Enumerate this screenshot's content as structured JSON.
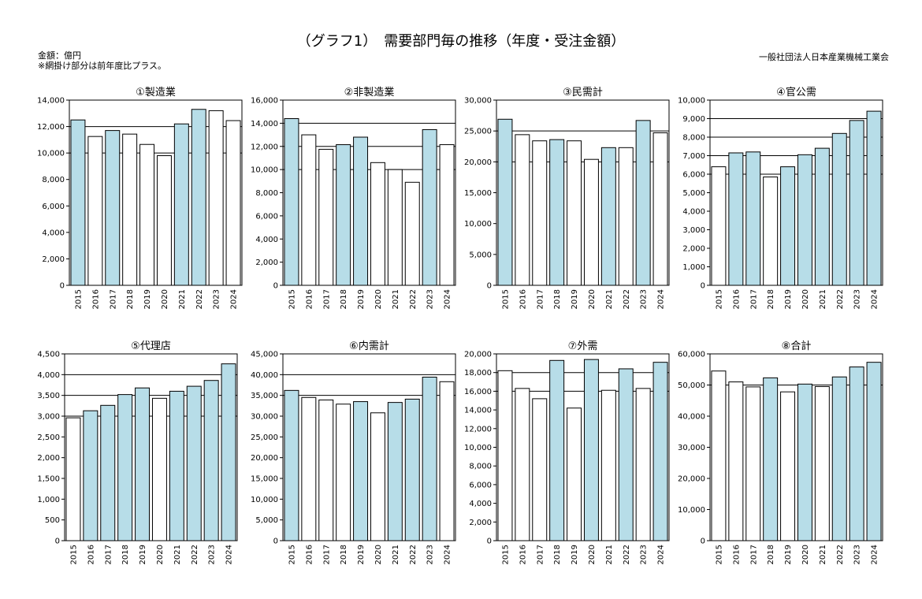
{
  "header": {
    "title": "（グラフ1）　需要部門毎の推移（年度・受注金額）",
    "unit": "金額：億円",
    "note": "※網掛け部分は前年度比プラス。",
    "publisher": "一般社団法人日本産業機械工業会"
  },
  "colors": {
    "plus": "#b7dde8",
    "minus": "#ffffff",
    "stroke": "#000000"
  },
  "chart_data": [
    {
      "type": "bar",
      "title": "①製造業",
      "categories": [
        "2015",
        "2016",
        "2017",
        "2018",
        "2019",
        "2020",
        "2021",
        "2022",
        "2023",
        "2024"
      ],
      "values": [
        12500,
        11250,
        11700,
        11430,
        10650,
        9800,
        12200,
        13300,
        13200,
        12450
      ],
      "shaded": [
        true,
        false,
        true,
        false,
        false,
        false,
        true,
        true,
        false,
        false
      ],
      "ylim": [
        0,
        14000
      ],
      "yticks": [
        0,
        2000,
        4000,
        6000,
        8000,
        10000,
        12000,
        14000
      ],
      "hlines": [
        10000,
        12000
      ],
      "grid": false
    },
    {
      "type": "bar",
      "title": "②非製造業",
      "categories": [
        "2015",
        "2016",
        "2017",
        "2018",
        "2019",
        "2020",
        "2021",
        "2022",
        "2023",
        "2024"
      ],
      "values": [
        14400,
        13000,
        11750,
        12150,
        12800,
        10600,
        10000,
        8900,
        13450,
        12150
      ],
      "shaded": [
        true,
        false,
        false,
        true,
        true,
        false,
        false,
        false,
        true,
        false
      ],
      "ylim": [
        0,
        16000
      ],
      "yticks": [
        0,
        2000,
        4000,
        6000,
        8000,
        10000,
        12000,
        14000,
        16000
      ],
      "hlines": [
        10000,
        12000,
        14000
      ],
      "grid": false
    },
    {
      "type": "bar",
      "title": "③民需計",
      "categories": [
        "2015",
        "2016",
        "2017",
        "2018",
        "2019",
        "2020",
        "2021",
        "2022",
        "2023",
        "2024"
      ],
      "values": [
        26900,
        24400,
        23400,
        23600,
        23400,
        20400,
        22300,
        22300,
        26700,
        24700
      ],
      "shaded": [
        true,
        false,
        false,
        true,
        false,
        false,
        true,
        false,
        true,
        false
      ],
      "ylim": [
        0,
        30000
      ],
      "yticks": [
        0,
        5000,
        10000,
        15000,
        20000,
        25000,
        30000
      ],
      "hlines": [
        20000,
        25000
      ],
      "grid": false
    },
    {
      "type": "bar",
      "title": "④官公需",
      "categories": [
        "2015",
        "2016",
        "2017",
        "2018",
        "2019",
        "2020",
        "2021",
        "2022",
        "2023",
        "2024"
      ],
      "values": [
        6400,
        7150,
        7200,
        5850,
        6400,
        7050,
        7400,
        8200,
        8900,
        9400
      ],
      "shaded": [
        false,
        true,
        true,
        false,
        true,
        true,
        true,
        true,
        true,
        true
      ],
      "ylim": [
        0,
        10000
      ],
      "yticks": [
        0,
        1000,
        2000,
        3000,
        4000,
        5000,
        6000,
        7000,
        8000,
        9000,
        10000
      ],
      "hlines": [
        6000,
        7000,
        8000,
        9000
      ],
      "grid": false
    },
    {
      "type": "bar",
      "title": "⑤代理店",
      "categories": [
        "2015",
        "2016",
        "2017",
        "2018",
        "2019",
        "2020",
        "2021",
        "2022",
        "2023",
        "2024"
      ],
      "values": [
        2960,
        3130,
        3260,
        3520,
        3680,
        3430,
        3600,
        3720,
        3860,
        4260
      ],
      "shaded": [
        false,
        true,
        true,
        true,
        true,
        false,
        true,
        true,
        true,
        true
      ],
      "ylim": [
        0,
        4500
      ],
      "yticks": [
        0,
        500,
        1000,
        1500,
        2000,
        2500,
        3000,
        3500,
        4000,
        4500
      ],
      "hlines": [
        3000,
        3500,
        4000
      ],
      "grid": false
    },
    {
      "type": "bar",
      "title": "⑥内需計",
      "categories": [
        "2015",
        "2016",
        "2017",
        "2018",
        "2019",
        "2020",
        "2021",
        "2022",
        "2023",
        "2024"
      ],
      "values": [
        36200,
        34500,
        33900,
        32900,
        33500,
        30800,
        33300,
        34100,
        39400,
        38300
      ],
      "shaded": [
        true,
        false,
        false,
        false,
        true,
        false,
        true,
        true,
        true,
        false
      ],
      "ylim": [
        0,
        45000
      ],
      "yticks": [
        0,
        5000,
        10000,
        15000,
        20000,
        25000,
        30000,
        35000,
        40000,
        45000
      ],
      "hlines": [
        35000,
        40000
      ],
      "grid": false
    },
    {
      "type": "bar",
      "title": "⑦外需",
      "categories": [
        "2015",
        "2016",
        "2017",
        "2018",
        "2019",
        "2020",
        "2021",
        "2022",
        "2023",
        "2024"
      ],
      "values": [
        18200,
        16300,
        15200,
        19300,
        14200,
        19400,
        16100,
        18400,
        16300,
        19100
      ],
      "shaded": [
        false,
        false,
        false,
        true,
        false,
        true,
        false,
        true,
        false,
        true
      ],
      "ylim": [
        0,
        20000
      ],
      "yticks": [
        0,
        2000,
        4000,
        6000,
        8000,
        10000,
        12000,
        14000,
        16000,
        18000,
        20000
      ],
      "hlines": [
        16000,
        18000
      ],
      "grid": false
    },
    {
      "type": "bar",
      "title": "⑧合計",
      "categories": [
        "2015",
        "2016",
        "2017",
        "2018",
        "2019",
        "2020",
        "2021",
        "2022",
        "2023",
        "2024"
      ],
      "values": [
        54500,
        51000,
        49400,
        52300,
        47800,
        50300,
        49500,
        52600,
        55800,
        57300
      ],
      "shaded": [
        false,
        false,
        false,
        true,
        false,
        true,
        false,
        true,
        true,
        true
      ],
      "ylim": [
        0,
        60000
      ],
      "yticks": [
        0,
        10000,
        20000,
        30000,
        40000,
        50000,
        60000
      ],
      "hlines": [
        50000
      ],
      "grid": false
    }
  ]
}
